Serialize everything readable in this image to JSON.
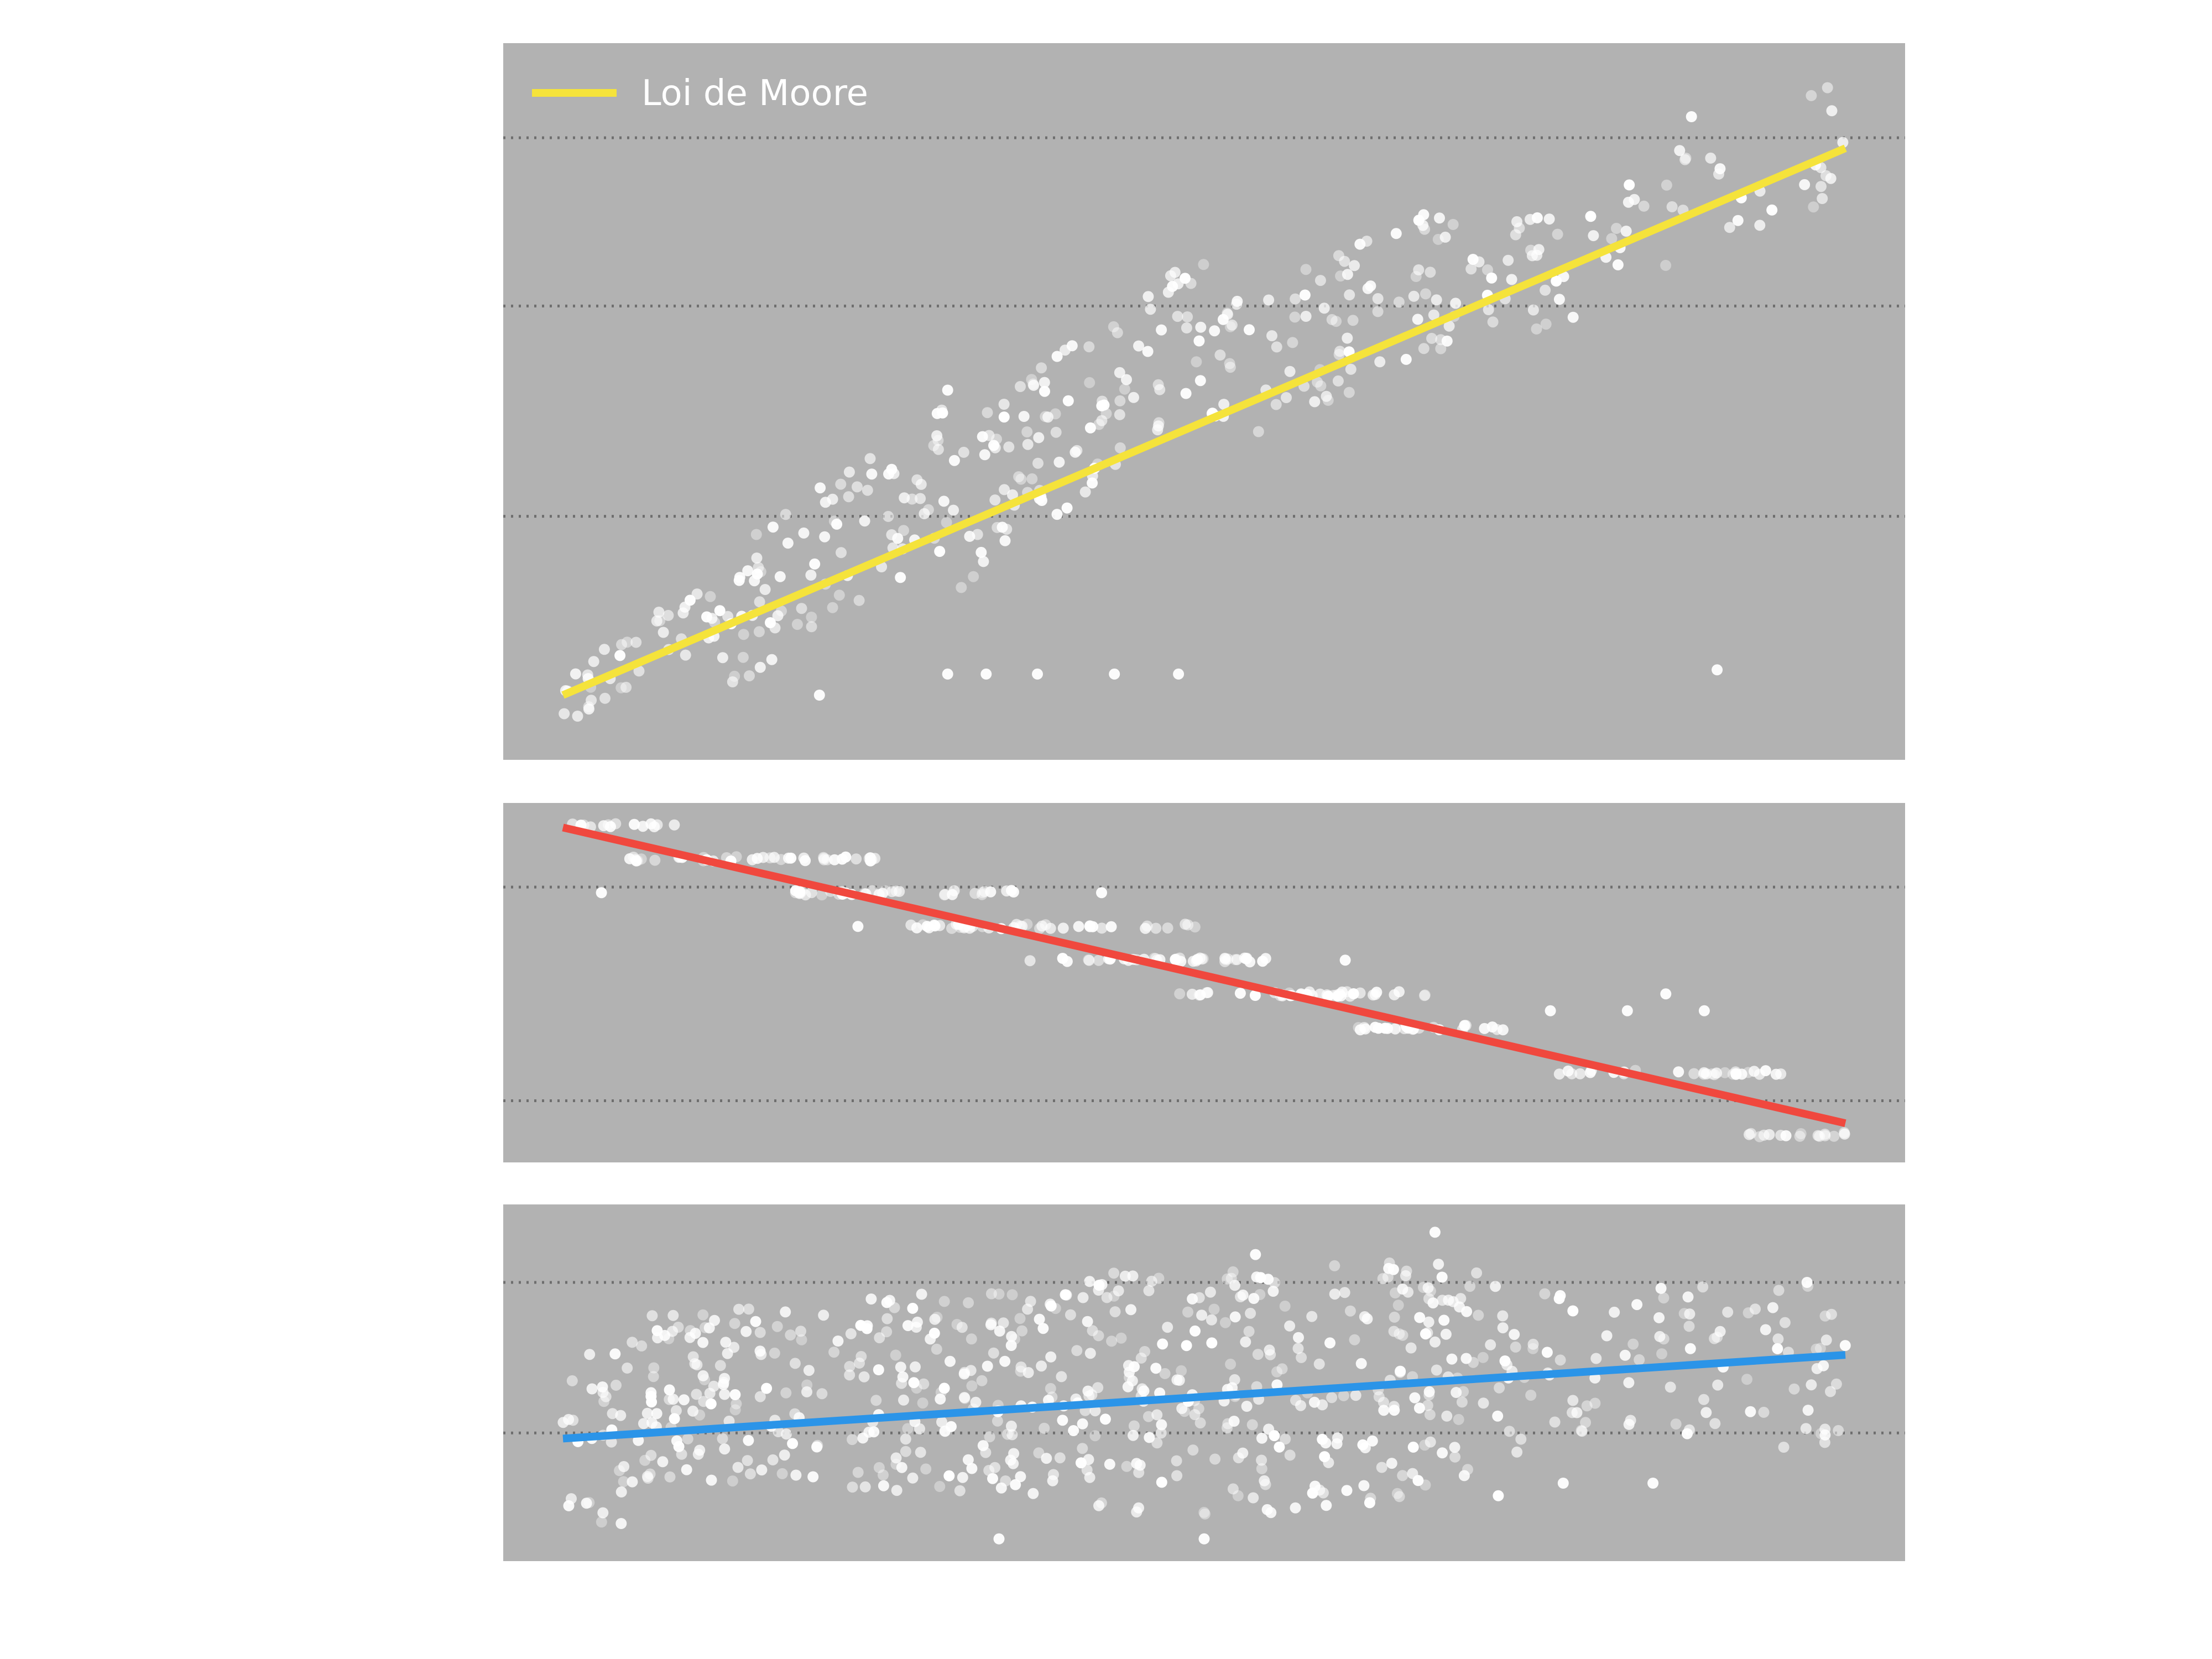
{
  "chart_data": [
    {
      "type": "scatter",
      "title": "",
      "xlabel": "",
      "ylabel": "",
      "xlim": [
        0,
        100
      ],
      "ylim": [
        0,
        3
      ],
      "grid": true,
      "gridlines_y": [
        1,
        2,
        2.8
      ],
      "legend": {
        "placement": "top-left",
        "entries": [
          {
            "label": "Loi de Moore",
            "color": "#f5e33b"
          }
        ]
      },
      "trend": {
        "color": "#f5e33b",
        "x": [
          0,
          100
        ],
        "y": [
          0.15,
          2.75
        ]
      },
      "point_color": "#ffffff",
      "clusters": [
        {
          "x": [
            0,
            12
          ],
          "y": [
            0.15,
            0.55
          ],
          "n": 40,
          "jitter": 0.05,
          "slope": 1
        },
        {
          "x": [
            12,
            30
          ],
          "y": [
            0.5,
            1.2
          ],
          "n": 90,
          "jitter": 0.12,
          "slope": 1
        },
        {
          "x": [
            30,
            50
          ],
          "y": [
            1.0,
            1.9
          ],
          "n": 110,
          "jitter": 0.13,
          "slope": 1
        },
        {
          "x": [
            50,
            70
          ],
          "y": [
            1.6,
            2.2
          ],
          "n": 90,
          "jitter": 0.12,
          "slope": 1
        },
        {
          "x": [
            70,
            100
          ],
          "y": [
            2.0,
            2.8
          ],
          "n": 70,
          "jitter": 0.1,
          "slope": 1
        }
      ],
      "extra_points": [
        {
          "x": 30,
          "y": 0.25
        },
        {
          "x": 33,
          "y": 0.25
        },
        {
          "x": 37,
          "y": 0.25
        },
        {
          "x": 43,
          "y": 0.25
        },
        {
          "x": 48,
          "y": 0.25
        },
        {
          "x": 90,
          "y": 0.27
        },
        {
          "x": 20,
          "y": 0.15
        },
        {
          "x": 30,
          "y": 1.6
        },
        {
          "x": 88,
          "y": 2.9
        }
      ]
    },
    {
      "type": "scatter",
      "title": "",
      "xlabel": "",
      "ylabel": "",
      "xlim": [
        0,
        100
      ],
      "ylim": [
        0,
        3
      ],
      "grid": true,
      "gridlines_y": [
        2.35,
        0.45
      ],
      "trend": {
        "color": "#f0483e",
        "x": [
          0,
          100
        ],
        "y": [
          2.88,
          0.25
        ]
      },
      "point_color": "#ffffff",
      "clusters": [
        {
          "x": [
            0,
            9
          ],
          "y": [
            2.9,
            2.9
          ],
          "n": 14,
          "jitter": 0.02,
          "slope": 0
        },
        {
          "x": [
            5,
            25
          ],
          "y": [
            2.6,
            2.6
          ],
          "n": 40,
          "jitter": 0.02,
          "slope": 0
        },
        {
          "x": [
            18,
            36
          ],
          "y": [
            2.3,
            2.3
          ],
          "n": 40,
          "jitter": 0.02,
          "slope": 0
        },
        {
          "x": [
            27,
            50
          ],
          "y": [
            2.0,
            2.0
          ],
          "n": 45,
          "jitter": 0.02,
          "slope": 0
        },
        {
          "x": [
            36,
            55
          ],
          "y": [
            1.7,
            1.7
          ],
          "n": 40,
          "jitter": 0.02,
          "slope": 0
        },
        {
          "x": [
            48,
            68
          ],
          "y": [
            1.4,
            1.4
          ],
          "n": 40,
          "jitter": 0.02,
          "slope": 0
        },
        {
          "x": [
            62,
            74
          ],
          "y": [
            1.1,
            1.1
          ],
          "n": 25,
          "jitter": 0.02,
          "slope": 0
        },
        {
          "x": [
            77,
            95
          ],
          "y": [
            0.7,
            0.7
          ],
          "n": 30,
          "jitter": 0.02,
          "slope": 0
        },
        {
          "x": [
            92,
            100
          ],
          "y": [
            0.15,
            0.15
          ],
          "n": 16,
          "jitter": 0.02,
          "slope": 0
        }
      ],
      "extra_points": [
        {
          "x": 3,
          "y": 2.3
        },
        {
          "x": 23,
          "y": 2.0
        },
        {
          "x": 42,
          "y": 2.3
        },
        {
          "x": 61,
          "y": 1.7
        },
        {
          "x": 77,
          "y": 1.25
        },
        {
          "x": 83,
          "y": 1.25
        },
        {
          "x": 86,
          "y": 1.4
        },
        {
          "x": 89,
          "y": 1.25
        }
      ]
    },
    {
      "type": "scatter",
      "title": "",
      "xlabel": "",
      "ylabel": "",
      "xlim": [
        0,
        100
      ],
      "ylim": [
        0,
        3
      ],
      "grid": true,
      "gridlines_y": [
        2.4,
        1.05
      ],
      "trend": {
        "color": "#2b94e8",
        "x": [
          0,
          100
        ],
        "y": [
          1.0,
          1.75
        ]
      },
      "point_color": "#ffffff",
      "clusters": [
        {
          "x": [
            0,
            5
          ],
          "y": [
            0.2,
            1.8
          ],
          "n": 30,
          "jitter": 0.1,
          "slope": 0
        },
        {
          "x": [
            5,
            20
          ],
          "y": [
            0.6,
            2.2
          ],
          "n": 120,
          "jitter": 0.1,
          "slope": 0
        },
        {
          "x": [
            20,
            40
          ],
          "y": [
            0.5,
            2.3
          ],
          "n": 160,
          "jitter": 0.1,
          "slope": 0
        },
        {
          "x": [
            40,
            60
          ],
          "y": [
            0.3,
            2.5
          ],
          "n": 180,
          "jitter": 0.1,
          "slope": 0
        },
        {
          "x": [
            60,
            75
          ],
          "y": [
            0.4,
            2.6
          ],
          "n": 120,
          "jitter": 0.1,
          "slope": 0
        },
        {
          "x": [
            75,
            100
          ],
          "y": [
            0.9,
            2.4
          ],
          "n": 90,
          "jitter": 0.1,
          "slope": 0
        }
      ],
      "extra_points": [
        {
          "x": 68,
          "y": 2.85
        },
        {
          "x": 54,
          "y": 2.65
        },
        {
          "x": 50,
          "y": 0.1
        },
        {
          "x": 34,
          "y": 0.1
        },
        {
          "x": 78,
          "y": 0.6
        },
        {
          "x": 85,
          "y": 0.6
        }
      ]
    }
  ]
}
